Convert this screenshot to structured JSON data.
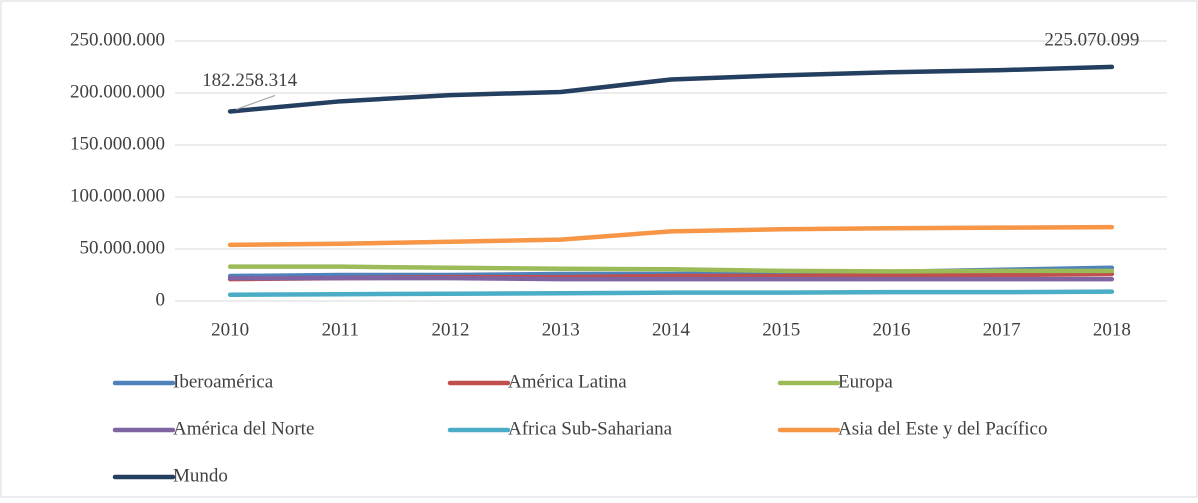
{
  "chart_data": {
    "type": "line",
    "categories": [
      "2010",
      "2011",
      "2012",
      "2013",
      "2014",
      "2015",
      "2016",
      "2017",
      "2018"
    ],
    "series": [
      {
        "name": "Iberoamérica",
        "color": "#4f81bd",
        "values": [
          24000000,
          25000000,
          25000000,
          26000000,
          26000000,
          27000000,
          28000000,
          30000000,
          32000000
        ]
      },
      {
        "name": "América Latina",
        "color": "#c0504d",
        "values": [
          21000000,
          22000000,
          23000000,
          23000000,
          24000000,
          24000000,
          25000000,
          25000000,
          26000000
        ]
      },
      {
        "name": "Europa",
        "color": "#9bbb59",
        "values": [
          33000000,
          33000000,
          32000000,
          31000000,
          30500000,
          29000000,
          28500000,
          29000000,
          29000000
        ]
      },
      {
        "name": "América del Norte",
        "color": "#8064a2",
        "values": [
          22000000,
          22000000,
          22000000,
          21000000,
          21000000,
          21000000,
          21000000,
          21000000,
          21000000
        ]
      },
      {
        "name": "Africa Sub-Sahariana",
        "color": "#4bacc6",
        "values": [
          6000000,
          6500000,
          7000000,
          7500000,
          8000000,
          8000000,
          8500000,
          8500000,
          9000000
        ]
      },
      {
        "name": "Asia del Este y del Pacífico",
        "color": "#f79646",
        "values": [
          54000000,
          55000000,
          57000000,
          59000000,
          67000000,
          69000000,
          70000000,
          70500000,
          71000000
        ]
      },
      {
        "name": "Mundo",
        "color": "#243f60",
        "values": [
          182258314,
          192000000,
          198000000,
          201000000,
          213000000,
          217000000,
          220000000,
          222000000,
          225070099
        ],
        "value_labels": [
          "182.258.314",
          null,
          null,
          null,
          null,
          null,
          null,
          null,
          "225.070.099"
        ]
      }
    ],
    "ylim": [
      0,
      250000000
    ],
    "yticks": [
      0,
      {
        "value": 50000000,
        "label": "50.000.000"
      },
      {
        "value": 100000000,
        "label": "100.000.000"
      },
      {
        "value": 150000000,
        "label": "150.000.000"
      },
      {
        "value": 200000000,
        "label": "200.000.000"
      },
      {
        "value": 250000000,
        "label": "250.000.000"
      }
    ],
    "grid": true,
    "legend": "bottom"
  }
}
